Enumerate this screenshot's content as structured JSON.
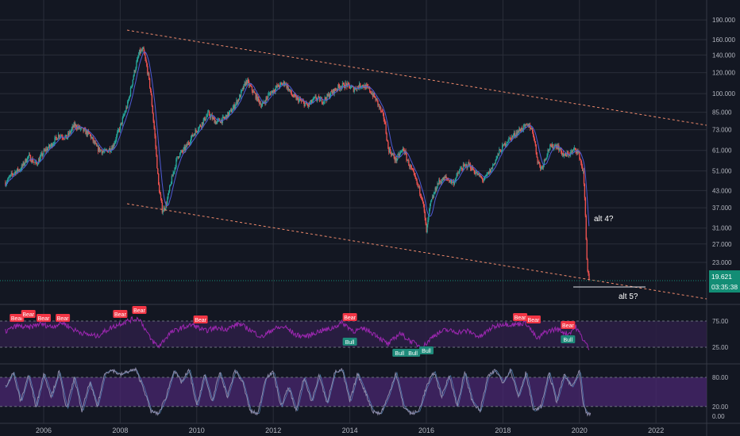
{
  "colors": {
    "background": "#131722",
    "grid": "#2a2e39",
    "up": "#26a69a",
    "down": "#ef5350",
    "ma": "#4f5bd5",
    "trendline": "#f08a6c",
    "rsi": "#9c27b0",
    "stoch": "#8e8aa8",
    "axis_text": "#b2b5be",
    "band": "#2d1e45",
    "stoch_band": "#4a2770",
    "bear_label": "#f23645",
    "bull_label": "#1e8a7a",
    "last_price_bg": "#138d75"
  },
  "axis": {
    "x_ticks": [
      "2006",
      "2008",
      "2010",
      "2012",
      "2014",
      "2016",
      "2018",
      "2020",
      "2022"
    ],
    "price_ticks": [
      "190.000",
      "160.000",
      "140.000",
      "120.000",
      "100.000",
      "85.000",
      "73.000",
      "61.000",
      "51.000",
      "43.000",
      "37.000",
      "31.000",
      "27.000",
      "23.000"
    ],
    "rsi_ticks": [
      "75.00",
      "25.00"
    ],
    "stoch_ticks": [
      "80.00",
      "20.00",
      "0.00"
    ]
  },
  "price_labels": {
    "last_price": "19.621",
    "countdown": "03:35:38"
  },
  "annotations": {
    "alt4": "alt 4?",
    "alt5": "alt 5?"
  },
  "signal_labels": {
    "bear": "Bear",
    "bull": "Bull"
  },
  "chart_data": [
    {
      "type": "candlestick",
      "panel": "price",
      "y_scale": "log",
      "ylim": [
        17.5,
        195
      ],
      "xlim": [
        2005.0,
        2023.0
      ],
      "series": [
        {
          "name": "",
          "points": [
            [
              2005.0,
              46
            ],
            [
              2005.2,
              50
            ],
            [
              2005.4,
              52
            ],
            [
              2005.6,
              58
            ],
            [
              2005.8,
              54
            ],
            [
              2006.0,
              60
            ],
            [
              2006.2,
              64
            ],
            [
              2006.4,
              70
            ],
            [
              2006.6,
              68
            ],
            [
              2006.8,
              76
            ],
            [
              2007.0,
              73
            ],
            [
              2007.2,
              70
            ],
            [
              2007.4,
              62
            ],
            [
              2007.6,
              60
            ],
            [
              2007.8,
              63
            ],
            [
              2008.0,
              75
            ],
            [
              2008.2,
              92
            ],
            [
              2008.35,
              118
            ],
            [
              2008.5,
              143
            ],
            [
              2008.6,
              146
            ],
            [
              2008.7,
              125
            ],
            [
              2008.8,
              100
            ],
            [
              2008.9,
              70
            ],
            [
              2009.0,
              45
            ],
            [
              2009.1,
              36
            ],
            [
              2009.2,
              38
            ],
            [
              2009.35,
              48
            ],
            [
              2009.5,
              58
            ],
            [
              2009.7,
              62
            ],
            [
              2009.9,
              70
            ],
            [
              2010.1,
              76
            ],
            [
              2010.3,
              84
            ],
            [
              2010.5,
              78
            ],
            [
              2010.7,
              80
            ],
            [
              2010.9,
              86
            ],
            [
              2011.1,
              96
            ],
            [
              2011.3,
              112
            ],
            [
              2011.5,
              100
            ],
            [
              2011.7,
              90
            ],
            [
              2011.9,
              100
            ],
            [
              2012.1,
              106
            ],
            [
              2012.3,
              110
            ],
            [
              2012.5,
              98
            ],
            [
              2012.7,
              94
            ],
            [
              2012.9,
              90
            ],
            [
              2013.1,
              96
            ],
            [
              2013.3,
              94
            ],
            [
              2013.5,
              100
            ],
            [
              2013.7,
              106
            ],
            [
              2013.9,
              108
            ],
            [
              2014.1,
              104
            ],
            [
              2014.3,
              108
            ],
            [
              2014.5,
              104
            ],
            [
              2014.7,
              94
            ],
            [
              2014.9,
              80
            ],
            [
              2015.0,
              62
            ],
            [
              2015.2,
              56
            ],
            [
              2015.4,
              62
            ],
            [
              2015.5,
              56
            ],
            [
              2015.7,
              48
            ],
            [
              2015.9,
              40
            ],
            [
              2016.0,
              30
            ],
            [
              2016.1,
              38
            ],
            [
              2016.3,
              46
            ],
            [
              2016.5,
              48
            ],
            [
              2016.7,
              46
            ],
            [
              2016.9,
              52
            ],
            [
              2017.1,
              54
            ],
            [
              2017.3,
              50
            ],
            [
              2017.5,
              47
            ],
            [
              2017.7,
              52
            ],
            [
              2017.9,
              60
            ],
            [
              2018.1,
              66
            ],
            [
              2018.3,
              70
            ],
            [
              2018.5,
              74
            ],
            [
              2018.7,
              76
            ],
            [
              2018.8,
              70
            ],
            [
              2018.9,
              56
            ],
            [
              2019.0,
              52
            ],
            [
              2019.2,
              62
            ],
            [
              2019.4,
              64
            ],
            [
              2019.6,
              58
            ],
            [
              2019.8,
              60
            ],
            [
              2019.9,
              62
            ],
            [
              2020.0,
              58
            ],
            [
              2020.1,
              50
            ],
            [
              2020.15,
              36
            ],
            [
              2020.2,
              22
            ],
            [
              2020.25,
              19.6
            ]
          ]
        }
      ],
      "moving_average": true,
      "trendlines": 2
    },
    {
      "type": "line",
      "panel": "rsi",
      "ylim": [
        0,
        100
      ],
      "levels": [
        75,
        25
      ],
      "series": [
        {
          "name": "",
          "points": [
            [
              2005.0,
              55
            ],
            [
              2005.3,
              66
            ],
            [
              2005.6,
              62
            ],
            [
              2005.9,
              70
            ],
            [
              2006.2,
              64
            ],
            [
              2006.5,
              72
            ],
            [
              2006.8,
              58
            ],
            [
              2007.1,
              50
            ],
            [
              2007.4,
              46
            ],
            [
              2007.7,
              60
            ],
            [
              2008.0,
              70
            ],
            [
              2008.3,
              78
            ],
            [
              2008.5,
              80
            ],
            [
              2008.8,
              40
            ],
            [
              2009.0,
              26
            ],
            [
              2009.3,
              52
            ],
            [
              2009.6,
              62
            ],
            [
              2009.9,
              68
            ],
            [
              2010.2,
              56
            ],
            [
              2010.5,
              62
            ],
            [
              2010.8,
              60
            ],
            [
              2011.1,
              70
            ],
            [
              2011.4,
              58
            ],
            [
              2011.7,
              44
            ],
            [
              2012.0,
              60
            ],
            [
              2012.3,
              64
            ],
            [
              2012.6,
              48
            ],
            [
              2012.9,
              46
            ],
            [
              2013.2,
              56
            ],
            [
              2013.5,
              60
            ],
            [
              2013.8,
              72
            ],
            [
              2014.1,
              56
            ],
            [
              2014.4,
              60
            ],
            [
              2014.7,
              48
            ],
            [
              2015.0,
              30
            ],
            [
              2015.3,
              52
            ],
            [
              2015.6,
              36
            ],
            [
              2015.9,
              25
            ],
            [
              2016.2,
              48
            ],
            [
              2016.5,
              58
            ],
            [
              2016.8,
              54
            ],
            [
              2017.1,
              56
            ],
            [
              2017.4,
              44
            ],
            [
              2017.7,
              62
            ],
            [
              2018.0,
              70
            ],
            [
              2018.3,
              68
            ],
            [
              2018.6,
              72
            ],
            [
              2018.9,
              40
            ],
            [
              2019.1,
              54
            ],
            [
              2019.4,
              60
            ],
            [
              2019.7,
              50
            ],
            [
              2019.9,
              64
            ],
            [
              2020.1,
              40
            ],
            [
              2020.25,
              22
            ]
          ]
        }
      ],
      "labels": [
        {
          "kind": "bear",
          "x": 2005.3
        },
        {
          "kind": "bear",
          "x": 2005.6
        },
        {
          "kind": "bear",
          "x": 2006.0
        },
        {
          "kind": "bear",
          "x": 2006.5
        },
        {
          "kind": "bear",
          "x": 2008.0
        },
        {
          "kind": "bear",
          "x": 2008.5
        },
        {
          "kind": "bear",
          "x": 2010.1
        },
        {
          "kind": "bear",
          "x": 2014.0
        },
        {
          "kind": "bear",
          "x": 2018.45
        },
        {
          "kind": "bear",
          "x": 2018.8
        },
        {
          "kind": "bear",
          "x": 2019.7
        },
        {
          "kind": "bull",
          "x": 2014.0
        },
        {
          "kind": "bull",
          "x": 2015.3
        },
        {
          "kind": "bull",
          "x": 2015.65
        },
        {
          "kind": "bull",
          "x": 2016.0
        },
        {
          "kind": "bull",
          "x": 2019.7
        }
      ]
    },
    {
      "type": "line",
      "panel": "stochastic",
      "ylim": [
        0,
        100
      ],
      "levels": [
        80,
        20
      ],
      "series": [
        {
          "name": "",
          "points": [
            [
              2005.0,
              60
            ],
            [
              2005.2,
              90
            ],
            [
              2005.4,
              30
            ],
            [
              2005.6,
              85
            ],
            [
              2005.8,
              20
            ],
            [
              2006.0,
              88
            ],
            [
              2006.2,
              40
            ],
            [
              2006.4,
              92
            ],
            [
              2006.6,
              15
            ],
            [
              2006.8,
              80
            ],
            [
              2007.0,
              10
            ],
            [
              2007.2,
              70
            ],
            [
              2007.4,
              20
            ],
            [
              2007.6,
              90
            ],
            [
              2007.8,
              95
            ],
            [
              2008.0,
              85
            ],
            [
              2008.2,
              92
            ],
            [
              2008.4,
              96
            ],
            [
              2008.6,
              60
            ],
            [
              2008.8,
              10
            ],
            [
              2009.0,
              5
            ],
            [
              2009.2,
              40
            ],
            [
              2009.4,
              95
            ],
            [
              2009.6,
              70
            ],
            [
              2009.8,
              95
            ],
            [
              2010.0,
              20
            ],
            [
              2010.2,
              85
            ],
            [
              2010.4,
              30
            ],
            [
              2010.6,
              90
            ],
            [
              2010.8,
              40
            ],
            [
              2011.0,
              95
            ],
            [
              2011.2,
              70
            ],
            [
              2011.4,
              10
            ],
            [
              2011.6,
              5
            ],
            [
              2011.8,
              80
            ],
            [
              2012.0,
              90
            ],
            [
              2012.2,
              20
            ],
            [
              2012.4,
              60
            ],
            [
              2012.6,
              10
            ],
            [
              2012.8,
              80
            ],
            [
              2013.0,
              30
            ],
            [
              2013.2,
              85
            ],
            [
              2013.4,
              25
            ],
            [
              2013.6,
              90
            ],
            [
              2013.8,
              95
            ],
            [
              2014.0,
              30
            ],
            [
              2014.2,
              88
            ],
            [
              2014.4,
              50
            ],
            [
              2014.6,
              10
            ],
            [
              2014.8,
              5
            ],
            [
              2015.0,
              40
            ],
            [
              2015.2,
              90
            ],
            [
              2015.4,
              20
            ],
            [
              2015.6,
              5
            ],
            [
              2015.8,
              10
            ],
            [
              2016.0,
              60
            ],
            [
              2016.2,
              92
            ],
            [
              2016.4,
              40
            ],
            [
              2016.6,
              85
            ],
            [
              2016.8,
              20
            ],
            [
              2017.0,
              90
            ],
            [
              2017.2,
              30
            ],
            [
              2017.4,
              10
            ],
            [
              2017.6,
              80
            ],
            [
              2017.8,
              95
            ],
            [
              2018.0,
              70
            ],
            [
              2018.2,
              96
            ],
            [
              2018.4,
              40
            ],
            [
              2018.6,
              90
            ],
            [
              2018.8,
              10
            ],
            [
              2019.0,
              20
            ],
            [
              2019.2,
              90
            ],
            [
              2019.4,
              30
            ],
            [
              2019.6,
              85
            ],
            [
              2019.8,
              60
            ],
            [
              2020.0,
              92
            ],
            [
              2020.1,
              20
            ],
            [
              2020.2,
              5
            ],
            [
              2020.3,
              3
            ]
          ]
        }
      ]
    }
  ]
}
